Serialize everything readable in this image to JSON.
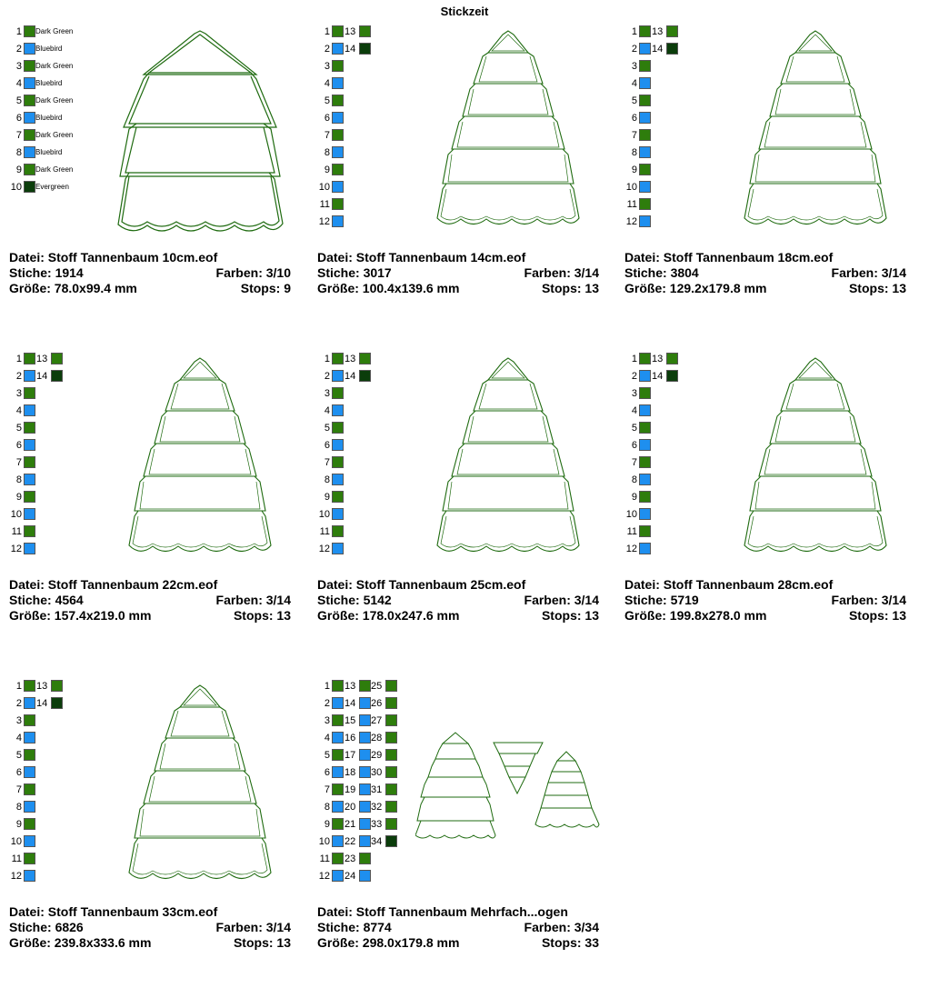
{
  "page_title": "Stickzeit",
  "labels": {
    "datei": "Datei:",
    "stiche": "Stiche:",
    "farben": "Farben:",
    "groesse": "Größe:",
    "stops": "Stops:"
  },
  "colors": {
    "dark_green": "#2E7D0C",
    "bluebird": "#1E8FEF",
    "evergreen": "#0B3D0B",
    "outline": "#1F6B10"
  },
  "designs": [
    {
      "file": "Stoff Tannenbaum 10cm.eof",
      "stitches": "1914",
      "colors": "3/10",
      "size": "78.0x99.4 mm",
      "stops": "9",
      "legend": [
        {
          "num": "1",
          "swatch": "dark_green",
          "name": "Dark Green"
        },
        {
          "num": "2",
          "swatch": "bluebird",
          "name": "Bluebird"
        },
        {
          "num": "3",
          "swatch": "dark_green",
          "name": "Dark Green"
        },
        {
          "num": "4",
          "swatch": "bluebird",
          "name": "Bluebird"
        },
        {
          "num": "5",
          "swatch": "dark_green",
          "name": "Dark Green"
        },
        {
          "num": "6",
          "swatch": "bluebird",
          "name": "Bluebird"
        },
        {
          "num": "7",
          "swatch": "dark_green",
          "name": "Dark Green"
        },
        {
          "num": "8",
          "swatch": "bluebird",
          "name": "Bluebird"
        },
        {
          "num": "9",
          "swatch": "dark_green",
          "name": "Dark Green"
        },
        {
          "num": "10",
          "swatch": "evergreen",
          "name": "Evergreen"
        }
      ]
    },
    {
      "file": "Stoff Tannenbaum 14cm.eof",
      "stitches": "3017",
      "colors": "3/14",
      "size": "100.4x139.6 mm",
      "stops": "13"
    },
    {
      "file": "Stoff Tannenbaum 18cm.eof",
      "stitches": "3804",
      "colors": "3/14",
      "size": "129.2x179.8 mm",
      "stops": "13"
    },
    {
      "file": "Stoff Tannenbaum 22cm.eof",
      "stitches": "4564",
      "colors": "3/14",
      "size": "157.4x219.0 mm",
      "stops": "13"
    },
    {
      "file": "Stoff Tannenbaum 25cm.eof",
      "stitches": "5142",
      "colors": "3/14",
      "size": "178.0x247.6 mm",
      "stops": "13"
    },
    {
      "file": "Stoff Tannenbaum 28cm.eof",
      "stitches": "5719",
      "colors": "3/14",
      "size": "199.8x278.0 mm",
      "stops": "13"
    },
    {
      "file": "Stoff Tannenbaum 33cm.eof",
      "stitches": "6826",
      "colors": "3/14",
      "size": "239.8x333.6 mm",
      "stops": "13"
    },
    {
      "file": "Stoff Tannenbaum Mehrfach...ogen",
      "stitches": "8774",
      "colors": "3/34",
      "size": "298.0x179.8 mm",
      "stops": "33"
    }
  ],
  "legend14": {
    "col1": [
      "1",
      "2",
      "3",
      "4",
      "5",
      "6",
      "7",
      "8",
      "9",
      "10",
      "11",
      "12"
    ],
    "col1_swatches": [
      "dark_green",
      "bluebird",
      "dark_green",
      "bluebird",
      "dark_green",
      "bluebird",
      "dark_green",
      "bluebird",
      "dark_green",
      "bluebird",
      "dark_green",
      "bluebird"
    ],
    "col2": [
      "13",
      "14"
    ],
    "col2_swatches": [
      "dark_green",
      "evergreen"
    ]
  },
  "legend34": {
    "col1": [
      "1",
      "2",
      "3",
      "4",
      "5",
      "6",
      "7",
      "8",
      "9",
      "10",
      "11",
      "12"
    ],
    "col2": [
      "13",
      "14",
      "15",
      "16",
      "17",
      "18",
      "19",
      "20",
      "21",
      "22",
      "23",
      "24"
    ],
    "col3": [
      "25",
      "26",
      "27",
      "28",
      "29",
      "30",
      "31",
      "32",
      "33",
      "34"
    ]
  }
}
